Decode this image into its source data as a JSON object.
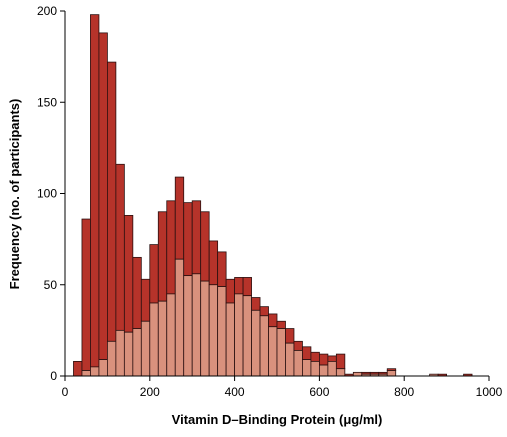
{
  "chart_data": {
    "type": "bar",
    "stacked": true,
    "xlabel": "Vitamin D–Binding Protein (μg/ml)",
    "ylabel": "Frequency (no. of participants)",
    "xlim": [
      0,
      1000
    ],
    "ylim": [
      0,
      200
    ],
    "x_ticks": [
      0,
      200,
      400,
      600,
      800,
      1000
    ],
    "y_ticks": [
      0,
      50,
      100,
      150,
      200
    ],
    "bin_width": 20,
    "grid": false,
    "colors": {
      "lower": "#d9917d",
      "upper": "#b6332a",
      "stroke": "#2a1010"
    },
    "bins": [
      {
        "x": 20,
        "lower": 0,
        "total": 8
      },
      {
        "x": 40,
        "lower": 3,
        "total": 86
      },
      {
        "x": 60,
        "lower": 5,
        "total": 198
      },
      {
        "x": 80,
        "lower": 9,
        "total": 188
      },
      {
        "x": 100,
        "lower": 19,
        "total": 172
      },
      {
        "x": 120,
        "lower": 25,
        "total": 116
      },
      {
        "x": 140,
        "lower": 24,
        "total": 88
      },
      {
        "x": 160,
        "lower": 26,
        "total": 65
      },
      {
        "x": 180,
        "lower": 30,
        "total": 53
      },
      {
        "x": 200,
        "lower": 40,
        "total": 72
      },
      {
        "x": 220,
        "lower": 41,
        "total": 90
      },
      {
        "x": 240,
        "lower": 45,
        "total": 96
      },
      {
        "x": 260,
        "lower": 64,
        "total": 109
      },
      {
        "x": 280,
        "lower": 55,
        "total": 95
      },
      {
        "x": 300,
        "lower": 56,
        "total": 96
      },
      {
        "x": 320,
        "lower": 52,
        "total": 90
      },
      {
        "x": 340,
        "lower": 50,
        "total": 74
      },
      {
        "x": 360,
        "lower": 49,
        "total": 68
      },
      {
        "x": 380,
        "lower": 40,
        "total": 53
      },
      {
        "x": 400,
        "lower": 45,
        "total": 54
      },
      {
        "x": 420,
        "lower": 44,
        "total": 54
      },
      {
        "x": 440,
        "lower": 36,
        "total": 43
      },
      {
        "x": 460,
        "lower": 33,
        "total": 38
      },
      {
        "x": 480,
        "lower": 27,
        "total": 34
      },
      {
        "x": 500,
        "lower": 26,
        "total": 30
      },
      {
        "x": 520,
        "lower": 18,
        "total": 26
      },
      {
        "x": 540,
        "lower": 14,
        "total": 19
      },
      {
        "x": 560,
        "lower": 9,
        "total": 16
      },
      {
        "x": 580,
        "lower": 8,
        "total": 13
      },
      {
        "x": 600,
        "lower": 6,
        "total": 12
      },
      {
        "x": 620,
        "lower": 8,
        "total": 11
      },
      {
        "x": 640,
        "lower": 4,
        "total": 12
      },
      {
        "x": 660,
        "lower": 0,
        "total": 1
      },
      {
        "x": 680,
        "lower": 2,
        "total": 2
      },
      {
        "x": 700,
        "lower": 1,
        "total": 2
      },
      {
        "x": 720,
        "lower": 1,
        "total": 2
      },
      {
        "x": 740,
        "lower": 1,
        "total": 2
      },
      {
        "x": 760,
        "lower": 3,
        "total": 4
      },
      {
        "x": 860,
        "lower": 1,
        "total": 1
      },
      {
        "x": 880,
        "lower": 0,
        "total": 1
      },
      {
        "x": 940,
        "lower": 0,
        "total": 1
      }
    ]
  }
}
